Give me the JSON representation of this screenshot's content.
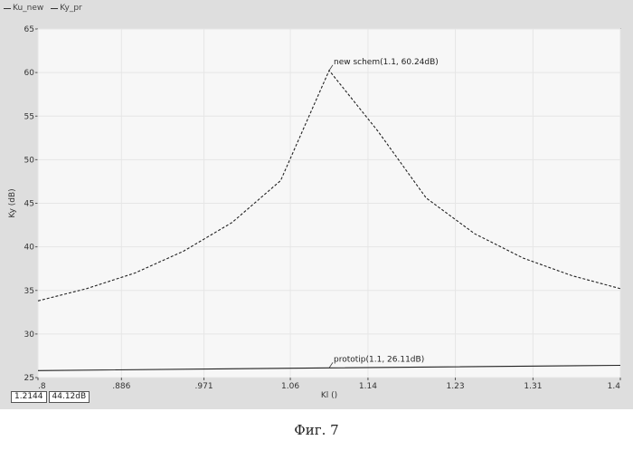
{
  "legend": [
    {
      "name": "Ku_new"
    },
    {
      "name": "Ky_pr"
    }
  ],
  "readout": {
    "x": "1.2144",
    "y": "44.12dB"
  },
  "caption": "Фиг. 7",
  "chart_data": {
    "type": "line",
    "xlabel": "Kl ()",
    "ylabel": "Ky (dB)",
    "xlim": [
      0.8,
      1.4
    ],
    "ylim": [
      25,
      65
    ],
    "x_ticks": [
      0.8,
      0.886,
      0.971,
      1.06,
      1.14,
      1.23,
      1.31,
      1.4
    ],
    "x_tick_labels": [
      ".8",
      ".886",
      ".971",
      "1.06",
      "1.14",
      "1.23",
      "1.31",
      "1.4"
    ],
    "y_ticks": [
      25,
      30,
      35,
      40,
      45,
      50,
      55,
      60,
      65
    ],
    "y_tick_labels": [
      "25",
      "30",
      "35",
      "40",
      "45",
      "50",
      "55",
      "60",
      "65"
    ],
    "grid": true,
    "series": [
      {
        "name": "Ku_new",
        "style": "dashed",
        "color": "#222222",
        "x": [
          0.8,
          0.85,
          0.9,
          0.95,
          1.0,
          1.05,
          1.1,
          1.15,
          1.2,
          1.25,
          1.3,
          1.35,
          1.4
        ],
        "values": [
          33.8,
          35.2,
          37.0,
          39.5,
          42.8,
          47.6,
          60.24,
          53.3,
          45.6,
          41.5,
          38.7,
          36.7,
          35.2
        ]
      },
      {
        "name": "Ky_pr",
        "style": "solid",
        "color": "#222222",
        "x": [
          0.8,
          1.1,
          1.4
        ],
        "values": [
          25.8,
          26.11,
          26.4
        ]
      }
    ],
    "annotations": [
      {
        "text": "new schem(1.1, 60.24dB)",
        "x": 1.1,
        "y": 60.24
      },
      {
        "text": "prototip(1.1, 26.11dB)",
        "x": 1.1,
        "y": 26.11
      }
    ]
  }
}
